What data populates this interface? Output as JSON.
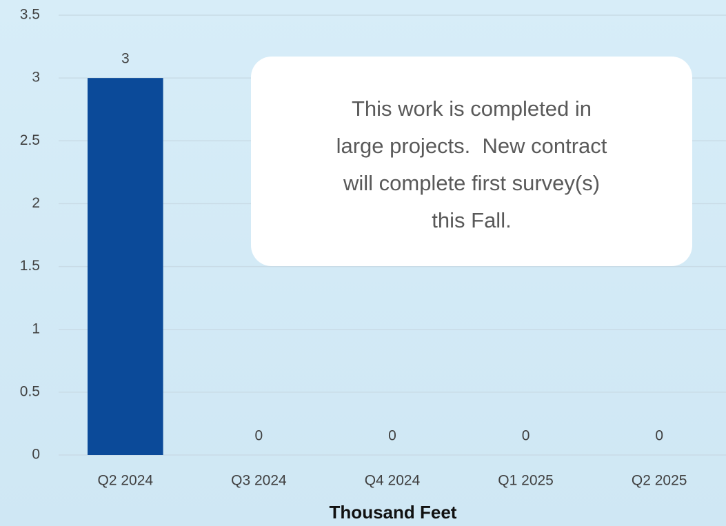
{
  "chart_data": {
    "type": "bar",
    "categories": [
      "Q2 2024",
      "Q3 2024",
      "Q4 2024",
      "Q1 2025",
      "Q2 2025"
    ],
    "values": [
      3,
      0,
      0,
      0,
      0
    ],
    "color": "#0b4a99",
    "ylim": [
      0,
      3.5
    ],
    "yticks": [
      0,
      0.5,
      1,
      1.5,
      2,
      2.5,
      3,
      3.5
    ],
    "grid": true,
    "x_label": "Thousand Feet",
    "annotation": [
      "This work is completed in",
      "large projects.  New contract",
      "will complete first survey(s)",
      "this Fall."
    ]
  }
}
